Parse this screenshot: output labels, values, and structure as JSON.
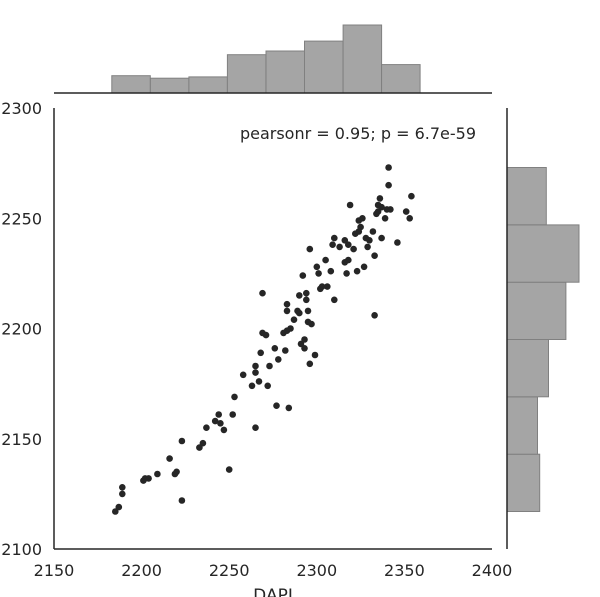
{
  "chart_data": {
    "type": "scatter",
    "title": "",
    "xlabel": "DAPI",
    "ylabel": "",
    "xlim": [
      2150,
      2400
    ],
    "ylim": [
      2100,
      2300
    ],
    "x_ticks": [
      2150,
      2200,
      2250,
      2300,
      2350,
      2400
    ],
    "y_ticks": [
      2100,
      2150,
      2200,
      2250,
      2300
    ],
    "x_tick_labels": [
      "2150",
      "2200",
      "2250",
      "2300",
      "2350",
      "2400"
    ],
    "y_tick_labels": [
      "2100",
      "2150",
      "2200",
      "2250",
      "2300"
    ],
    "annotation": "pearsonr = 0.95; p = 6.7e-59",
    "grid": false,
    "point_color": "#262626",
    "hist_color": "#a5a5a5",
    "hist_edge_color": "#808080",
    "points": [
      [
        2185,
        2117
      ],
      [
        2187,
        2119
      ],
      [
        2189,
        2125
      ],
      [
        2189,
        2128
      ],
      [
        2201,
        2131
      ],
      [
        2202,
        2132
      ],
      [
        2204,
        2132
      ],
      [
        2209,
        2134
      ],
      [
        2216,
        2141
      ],
      [
        2219,
        2134
      ],
      [
        2220,
        2135
      ],
      [
        2223,
        2149
      ],
      [
        2223,
        2122
      ],
      [
        2233,
        2146
      ],
      [
        2235,
        2148
      ],
      [
        2237,
        2155
      ],
      [
        2242,
        2158
      ],
      [
        2244,
        2161
      ],
      [
        2245,
        2157
      ],
      [
        2247,
        2154
      ],
      [
        2250,
        2136
      ],
      [
        2252,
        2161
      ],
      [
        2253,
        2169
      ],
      [
        2258,
        2179
      ],
      [
        2263,
        2174
      ],
      [
        2265,
        2155
      ],
      [
        2265,
        2180
      ],
      [
        2265,
        2183
      ],
      [
        2267,
        2176
      ],
      [
        2268,
        2189
      ],
      [
        2269,
        2198
      ],
      [
        2269,
        2216
      ],
      [
        2271,
        2197
      ],
      [
        2272,
        2174
      ],
      [
        2273,
        2183
      ],
      [
        2276,
        2191
      ],
      [
        2277,
        2165
      ],
      [
        2278,
        2186
      ],
      [
        2281,
        2198
      ],
      [
        2282,
        2190
      ],
      [
        2283,
        2199
      ],
      [
        2283,
        2208
      ],
      [
        2283,
        2211
      ],
      [
        2284,
        2164
      ],
      [
        2285,
        2200
      ],
      [
        2287,
        2204
      ],
      [
        2289,
        2208
      ],
      [
        2290,
        2215
      ],
      [
        2290,
        2207
      ],
      [
        2291,
        2193
      ],
      [
        2292,
        2224
      ],
      [
        2293,
        2195
      ],
      [
        2293,
        2191
      ],
      [
        2294,
        2213
      ],
      [
        2294,
        2216
      ],
      [
        2295,
        2208
      ],
      [
        2295,
        2203
      ],
      [
        2296,
        2236
      ],
      [
        2296,
        2184
      ],
      [
        2297,
        2202
      ],
      [
        2299,
        2188
      ],
      [
        2300,
        2228
      ],
      [
        2301,
        2225
      ],
      [
        2302,
        2218
      ],
      [
        2303,
        2219
      ],
      [
        2305,
        2231
      ],
      [
        2306,
        2219
      ],
      [
        2308,
        2226
      ],
      [
        2309,
        2238
      ],
      [
        2310,
        2241
      ],
      [
        2310,
        2213
      ],
      [
        2313,
        2237
      ],
      [
        2316,
        2240
      ],
      [
        2316,
        2230
      ],
      [
        2317,
        2225
      ],
      [
        2318,
        2231
      ],
      [
        2318,
        2238
      ],
      [
        2319,
        2256
      ],
      [
        2321,
        2236
      ],
      [
        2322,
        2243
      ],
      [
        2323,
        2226
      ],
      [
        2324,
        2249
      ],
      [
        2324,
        2244
      ],
      [
        2325,
        2246
      ],
      [
        2326,
        2250
      ],
      [
        2327,
        2228
      ],
      [
        2328,
        2241
      ],
      [
        2329,
        2237
      ],
      [
        2330,
        2240
      ],
      [
        2332,
        2244
      ],
      [
        2333,
        2233
      ],
      [
        2333,
        2206
      ],
      [
        2334,
        2252
      ],
      [
        2335,
        2256
      ],
      [
        2335,
        2253
      ],
      [
        2336,
        2259
      ],
      [
        2337,
        2255
      ],
      [
        2337,
        2241
      ],
      [
        2339,
        2250
      ],
      [
        2340,
        2254
      ],
      [
        2341,
        2273
      ],
      [
        2341,
        2265
      ],
      [
        2342,
        2254
      ],
      [
        2346,
        2239
      ],
      [
        2351,
        2253
      ],
      [
        2353,
        2250
      ],
      [
        2354,
        2260
      ]
    ],
    "x_hist": {
      "bin_edges": [
        2183,
        2205,
        2227,
        2249,
        2271,
        2293,
        2315,
        2337,
        2359
      ],
      "counts": [
        7,
        6,
        6.5,
        15.5,
        17,
        21,
        27.5,
        11.5
      ]
    },
    "y_hist": {
      "bin_edges": [
        2117,
        2143,
        2169,
        2195,
        2221,
        2247,
        2273
      ],
      "counts": [
        7.5,
        7,
        9.5,
        13.5,
        16.5,
        9
      ]
    }
  }
}
